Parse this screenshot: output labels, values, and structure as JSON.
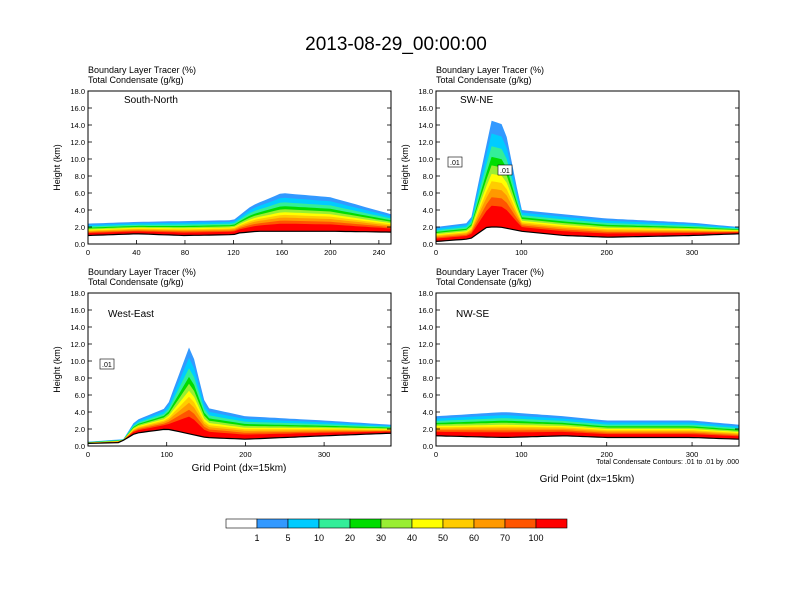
{
  "title": "2013-08-29_00:00:00",
  "footnote": "Total Condensate Contours: .01 to .01 by .000",
  "xlabel": "Grid Point (dx=15km)",
  "ylabel": "Height (km)",
  "legend_colors": [
    "#ffffff",
    "#3399ff",
    "#00ccff",
    "#33ee99",
    "#00dd00",
    "#99ee33",
    "#ffff00",
    "#ffcc00",
    "#ff9900",
    "#ff5500",
    "#ff0000"
  ],
  "legend_labels": [
    "1",
    "5",
    "10",
    "20",
    "30",
    "40",
    "50",
    "60",
    "70",
    "100"
  ],
  "chart_data": [
    {
      "type": "heatmap",
      "name": "South-North",
      "header_line1": "Boundary Layer Tracer   (%)",
      "header_line2": "Total Condensate   (g/kg)",
      "xlim": [
        0,
        250
      ],
      "ylim": [
        0,
        18
      ],
      "xticks": [
        0,
        40,
        80,
        120,
        160,
        200,
        240
      ],
      "yticks": [
        0,
        2,
        4,
        6,
        8,
        10,
        12,
        14,
        16,
        18
      ],
      "contour_labels": [],
      "terrain_top": [
        [
          0,
          1.0
        ],
        [
          40,
          1.2
        ],
        [
          80,
          1.0
        ],
        [
          120,
          1.1
        ],
        [
          125,
          1.3
        ],
        [
          140,
          1.5
        ],
        [
          160,
          1.5
        ],
        [
          200,
          1.5
        ],
        [
          250,
          1.4
        ]
      ],
      "tracer_top": [
        [
          0,
          2.4
        ],
        [
          40,
          2.6
        ],
        [
          80,
          2.7
        ],
        [
          120,
          2.8
        ],
        [
          135,
          4.5
        ],
        [
          160,
          6.0
        ],
        [
          200,
          5.5
        ],
        [
          250,
          3.5
        ]
      ]
    },
    {
      "type": "heatmap",
      "name": "SW-NE",
      "header_line1": "Boundary Layer Tracer   (%)",
      "header_line2": "Total Condensate   (g/kg)",
      "xlim": [
        0,
        355
      ],
      "ylim": [
        0,
        18
      ],
      "xticks": [
        0,
        100,
        200,
        300
      ],
      "yticks": [
        0,
        2,
        4,
        6,
        8,
        10,
        12,
        14,
        16,
        18
      ],
      "contour_labels": [
        ".01",
        ".01"
      ],
      "terrain_top": [
        [
          0,
          0.3
        ],
        [
          40,
          0.6
        ],
        [
          60,
          2.0
        ],
        [
          75,
          2.0
        ],
        [
          100,
          1.5
        ],
        [
          150,
          1.0
        ],
        [
          200,
          0.8
        ],
        [
          300,
          1.0
        ],
        [
          355,
          1.2
        ]
      ],
      "tracer_top": [
        [
          0,
          2.0
        ],
        [
          40,
          2.5
        ],
        [
          65,
          14.5
        ],
        [
          80,
          14.0
        ],
        [
          100,
          4.0
        ],
        [
          200,
          3.0
        ],
        [
          300,
          2.5
        ],
        [
          355,
          2.0
        ]
      ]
    },
    {
      "type": "heatmap",
      "name": "West-East",
      "header_line1": "Boundary Layer Tracer   (%)",
      "header_line2": "Total Condensate   (g/kg)",
      "xlim": [
        0,
        385
      ],
      "ylim": [
        0,
        18
      ],
      "xticks": [
        0,
        100,
        200,
        300
      ],
      "yticks": [
        0,
        2,
        4,
        6,
        8,
        10,
        12,
        14,
        16,
        18
      ],
      "contour_labels": [
        ".01"
      ],
      "terrain_top": [
        [
          0,
          0.3
        ],
        [
          40,
          0.4
        ],
        [
          60,
          1.5
        ],
        [
          100,
          2.0
        ],
        [
          150,
          1.0
        ],
        [
          200,
          0.8
        ],
        [
          300,
          1.2
        ],
        [
          385,
          1.5
        ]
      ],
      "tracer_top": [
        [
          0,
          0.5
        ],
        [
          45,
          0.8
        ],
        [
          60,
          3.0
        ],
        [
          100,
          4.5
        ],
        [
          130,
          12.0
        ],
        [
          150,
          4.5
        ],
        [
          200,
          3.5
        ],
        [
          300,
          3.0
        ],
        [
          385,
          2.5
        ]
      ]
    },
    {
      "type": "heatmap",
      "name": "NW-SE",
      "header_line1": "Boundary Layer Tracer   (%)",
      "header_line2": "Total Condensate   (g/kg)",
      "xlim": [
        0,
        355
      ],
      "ylim": [
        0,
        18
      ],
      "xticks": [
        0,
        100,
        200,
        300
      ],
      "yticks": [
        0,
        2,
        4,
        6,
        8,
        10,
        12,
        14,
        16,
        18
      ],
      "contour_labels": [],
      "terrain_top": [
        [
          0,
          1.2
        ],
        [
          80,
          1.0
        ],
        [
          150,
          1.2
        ],
        [
          200,
          1.0
        ],
        [
          300,
          1.0
        ],
        [
          355,
          0.8
        ]
      ],
      "tracer_top": [
        [
          0,
          3.5
        ],
        [
          80,
          4.0
        ],
        [
          150,
          3.5
        ],
        [
          200,
          3.0
        ],
        [
          300,
          3.0
        ],
        [
          355,
          2.5
        ]
      ]
    }
  ]
}
